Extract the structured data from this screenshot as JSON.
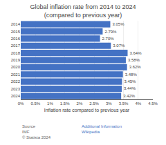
{
  "chart_data": {
    "type": "bar",
    "orientation": "horizontal",
    "title": "Global inflation rate from 2014 to 2024 (compared to previous year)",
    "xlabel": "Inflation rate compared to previous year",
    "categories": [
      "2014",
      "2015",
      "2016",
      "2017",
      "2018",
      "2019",
      "2020",
      "2021",
      "2022",
      "2023",
      "2024"
    ],
    "values": [
      3.05,
      2.79,
      2.7,
      3.07,
      3.64,
      3.58,
      3.62,
      3.48,
      3.45,
      3.44,
      3.42
    ],
    "value_labels": [
      "3.05%",
      "2.79%",
      "2.70%",
      "3.07%",
      "3.64%",
      "3.58%",
      "3.62%",
      "3.48%",
      "3.45%",
      "3.44%",
      "3.42%"
    ],
    "data_labels": true,
    "color": "#4472C4",
    "xlim": [
      0,
      4.5
    ],
    "xticks": [
      {
        "value": 0,
        "label": "0%"
      },
      {
        "value": 0.5,
        "label": "0.5%"
      },
      {
        "value": 1.0,
        "label": "1%"
      },
      {
        "value": 1.5,
        "label": "1.5%"
      },
      {
        "value": 2.0,
        "label": "2%"
      },
      {
        "value": 2.5,
        "label": "2.5%"
      },
      {
        "value": 3.0,
        "label": "3%"
      },
      {
        "value": 3.5,
        "label": "3.5%"
      },
      {
        "value": 4.0,
        "label": "4%"
      },
      {
        "value": 4.5,
        "label": "4.5%"
      }
    ],
    "grid": true,
    "annotations": [
      "Source\nIMF\n© Statista 2024",
      "Additional Information\nWikipedia"
    ]
  }
}
